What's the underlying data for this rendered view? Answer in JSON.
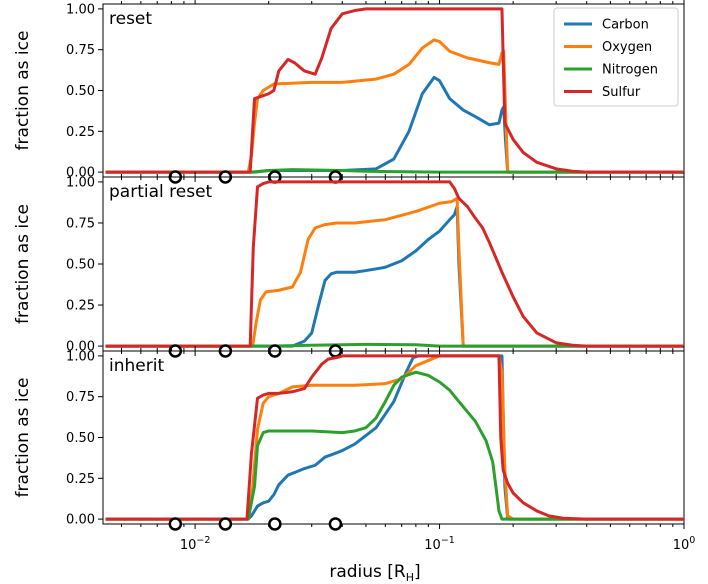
{
  "chart_data": {
    "type": "line",
    "xlabel": "radius [R",
    "xlabel_sub": "H",
    "xlabel_close": "]",
    "xscale": "log",
    "xlim": [
      0.0042,
      1.0
    ],
    "x_ticks": [
      {
        "value": 0.01,
        "base": "10",
        "exp": "−2"
      },
      {
        "value": 0.1,
        "base": "10",
        "exp": "−1"
      },
      {
        "value": 1.0,
        "base": "10",
        "exp": "0"
      }
    ],
    "ylabel": "fraction as ice",
    "ylim": [
      -0.03,
      1.03
    ],
    "y_ticks": [
      "0.00",
      "0.25",
      "0.50",
      "0.75",
      "1.00"
    ],
    "y_tick_values": [
      0,
      0.25,
      0.5,
      0.75,
      1.0
    ],
    "legend": {
      "location": "top-right",
      "entries": [
        "Carbon",
        "Oxygen",
        "Nitrogen",
        "Sulfur"
      ]
    },
    "colors": {
      "Carbon": "#1f77b4",
      "Oxygen": "#ff7f0e",
      "Nitrogen": "#2ca02c",
      "Sulfur": "#d62728"
    },
    "marker_x": [
      0.0083,
      0.0133,
      0.0212,
      0.0375
    ],
    "panels": [
      {
        "label": "reset",
        "series": [
          {
            "name": "Carbon",
            "x": [
              0.0043,
              0.0175,
              0.02,
              0.03,
              0.04,
              0.055,
              0.065,
              0.075,
              0.085,
              0.095,
              0.1,
              0.11,
              0.125,
              0.14,
              0.16,
              0.175,
              0.18,
              0.183,
              0.186,
              0.19,
              1.0
            ],
            "y": [
              0,
              0,
              0.01,
              0.01,
              0.01,
              0.02,
              0.08,
              0.25,
              0.48,
              0.58,
              0.56,
              0.45,
              0.38,
              0.34,
              0.29,
              0.3,
              0.38,
              0.4,
              0.2,
              0,
              0
            ]
          },
          {
            "name": "Oxygen",
            "x": [
              0.0043,
              0.0165,
              0.017,
              0.0175,
              0.018,
              0.019,
              0.021,
              0.03,
              0.04,
              0.055,
              0.065,
              0.075,
              0.085,
              0.095,
              0.1,
              0.11,
              0.13,
              0.16,
              0.175,
              0.18,
              0.183,
              0.186,
              0.19,
              1.0
            ],
            "y": [
              0,
              0,
              0.1,
              0.3,
              0.45,
              0.5,
              0.54,
              0.55,
              0.55,
              0.57,
              0.6,
              0.66,
              0.76,
              0.81,
              0.8,
              0.74,
              0.7,
              0.67,
              0.66,
              0.73,
              0.74,
              0.4,
              0,
              0
            ]
          },
          {
            "name": "Nitrogen",
            "x": [
              0.0043,
              0.017,
              0.02,
              0.025,
              0.04,
              0.05,
              0.1,
              1.0
            ],
            "y": [
              0,
              0,
              0.01,
              0.015,
              0.01,
              0.005,
              0,
              0
            ]
          },
          {
            "name": "Sulfur",
            "x": [
              0.0043,
              0.0168,
              0.0175,
              0.02,
              0.021,
              0.022,
              0.024,
              0.0255,
              0.028,
              0.031,
              0.033,
              0.036,
              0.04,
              0.045,
              0.05,
              0.06,
              0.1,
              0.15,
              0.175,
              0.18,
              0.185,
              0.2,
              0.22,
              0.25,
              0.3,
              0.35,
              0.4,
              0.5,
              1.0
            ],
            "y": [
              0,
              0,
              0.45,
              0.48,
              0.5,
              0.62,
              0.69,
              0.67,
              0.62,
              0.6,
              0.7,
              0.88,
              0.97,
              0.99,
              1.0,
              1.0,
              1.0,
              1.0,
              1.0,
              1.0,
              0.3,
              0.2,
              0.12,
              0.06,
              0.02,
              0.005,
              0,
              0,
              0
            ]
          }
        ]
      },
      {
        "label": "partial reset",
        "series": [
          {
            "name": "Carbon",
            "x": [
              0.0043,
              0.025,
              0.028,
              0.03,
              0.032,
              0.034,
              0.036,
              0.038,
              0.04,
              0.045,
              0.05,
              0.06,
              0.07,
              0.08,
              0.09,
              0.1,
              0.11,
              0.115,
              0.118,
              0.12,
              0.125,
              1.0
            ],
            "y": [
              0,
              0,
              0.03,
              0.08,
              0.25,
              0.4,
              0.44,
              0.45,
              0.45,
              0.45,
              0.46,
              0.48,
              0.52,
              0.58,
              0.65,
              0.7,
              0.77,
              0.8,
              0.85,
              0.5,
              0,
              0
            ]
          },
          {
            "name": "Oxygen",
            "x": [
              0.0043,
              0.0172,
              0.0178,
              0.0185,
              0.0195,
              0.022,
              0.025,
              0.027,
              0.029,
              0.031,
              0.034,
              0.038,
              0.045,
              0.06,
              0.08,
              0.1,
              0.112,
              0.118,
              0.12,
              0.125,
              1.0
            ],
            "y": [
              0,
              0,
              0.15,
              0.28,
              0.33,
              0.34,
              0.36,
              0.45,
              0.65,
              0.72,
              0.74,
              0.75,
              0.75,
              0.77,
              0.82,
              0.87,
              0.88,
              0.9,
              0.6,
              0,
              0
            ]
          },
          {
            "name": "Nitrogen",
            "x": [
              0.0043,
              0.02,
              0.03,
              0.05,
              0.08,
              0.1,
              1.0
            ],
            "y": [
              0,
              0,
              0.005,
              0.01,
              0.008,
              0,
              0
            ]
          },
          {
            "name": "Sulfur",
            "x": [
              0.0043,
              0.0168,
              0.0173,
              0.018,
              0.019,
              0.02,
              0.03,
              0.05,
              0.08,
              0.1,
              0.11,
              0.115,
              0.12,
              0.13,
              0.14,
              0.15,
              0.16,
              0.18,
              0.2,
              0.22,
              0.25,
              0.3,
              0.35,
              0.4,
              1.0
            ],
            "y": [
              0,
              0,
              0.6,
              0.97,
              0.99,
              1.0,
              1.0,
              1.0,
              1.0,
              1.0,
              1.0,
              0.96,
              0.9,
              0.85,
              0.78,
              0.72,
              0.63,
              0.45,
              0.3,
              0.18,
              0.08,
              0.02,
              0.005,
              0,
              0
            ]
          }
        ]
      },
      {
        "label": "inherit",
        "series": [
          {
            "name": "Carbon",
            "x": [
              0.0043,
              0.0165,
              0.017,
              0.0175,
              0.018,
              0.019,
              0.02,
              0.021,
              0.022,
              0.024,
              0.026,
              0.028,
              0.031,
              0.034,
              0.037,
              0.04,
              0.045,
              0.055,
              0.065,
              0.073,
              0.078,
              0.082,
              0.1,
              0.13,
              0.16,
              0.175,
              0.18,
              0.185,
              0.19,
              1.0
            ],
            "y": [
              0,
              0,
              0.02,
              0.05,
              0.08,
              0.1,
              0.11,
              0.15,
              0.21,
              0.27,
              0.29,
              0.31,
              0.33,
              0.38,
              0.4,
              0.42,
              0.46,
              0.56,
              0.72,
              0.9,
              0.99,
              1.0,
              1.0,
              1.0,
              1.0,
              1.0,
              1.0,
              0.2,
              0,
              0
            ]
          },
          {
            "name": "Oxygen",
            "x": [
              0.0043,
              0.0165,
              0.0172,
              0.018,
              0.019,
              0.02,
              0.022,
              0.025,
              0.03,
              0.045,
              0.06,
              0.07,
              0.08,
              0.1,
              0.13,
              0.16,
              0.17,
              0.175,
              0.18,
              0.185,
              0.19,
              0.2,
              1.0
            ],
            "y": [
              0,
              0,
              0.2,
              0.55,
              0.71,
              0.75,
              0.77,
              0.81,
              0.82,
              0.82,
              0.83,
              0.86,
              0.94,
              1.0,
              1.0,
              1.0,
              1.0,
              1.0,
              0.9,
              0.3,
              0.02,
              0,
              0
            ]
          },
          {
            "name": "Nitrogen",
            "x": [
              0.0043,
              0.0165,
              0.0175,
              0.018,
              0.019,
              0.02,
              0.025,
              0.03,
              0.04,
              0.045,
              0.05,
              0.055,
              0.06,
              0.065,
              0.07,
              0.08,
              0.09,
              0.1,
              0.11,
              0.12,
              0.14,
              0.155,
              0.165,
              0.17,
              0.175,
              0.18,
              0.19,
              1.0
            ],
            "y": [
              0,
              0,
              0.2,
              0.45,
              0.53,
              0.54,
              0.54,
              0.54,
              0.53,
              0.54,
              0.56,
              0.62,
              0.72,
              0.82,
              0.87,
              0.9,
              0.88,
              0.84,
              0.79,
              0.72,
              0.6,
              0.48,
              0.35,
              0.2,
              0.05,
              0,
              0,
              0
            ]
          },
          {
            "name": "Sulfur",
            "x": [
              0.0043,
              0.0163,
              0.017,
              0.018,
              0.019,
              0.02,
              0.022,
              0.025,
              0.028,
              0.03,
              0.033,
              0.035,
              0.038,
              0.04,
              0.045,
              0.05,
              0.08,
              0.12,
              0.175,
              0.178,
              0.182,
              0.19,
              0.2,
              0.22,
              0.25,
              0.28,
              0.32,
              0.4,
              1.0
            ],
            "y": [
              0,
              0,
              0.4,
              0.74,
              0.76,
              0.77,
              0.77,
              0.78,
              0.8,
              0.87,
              0.95,
              0.98,
              0.99,
              1.0,
              1.0,
              1.0,
              1.0,
              1.0,
              1.0,
              0.5,
              0.3,
              0.22,
              0.16,
              0.1,
              0.05,
              0.02,
              0.005,
              0,
              0
            ]
          }
        ]
      }
    ]
  }
}
